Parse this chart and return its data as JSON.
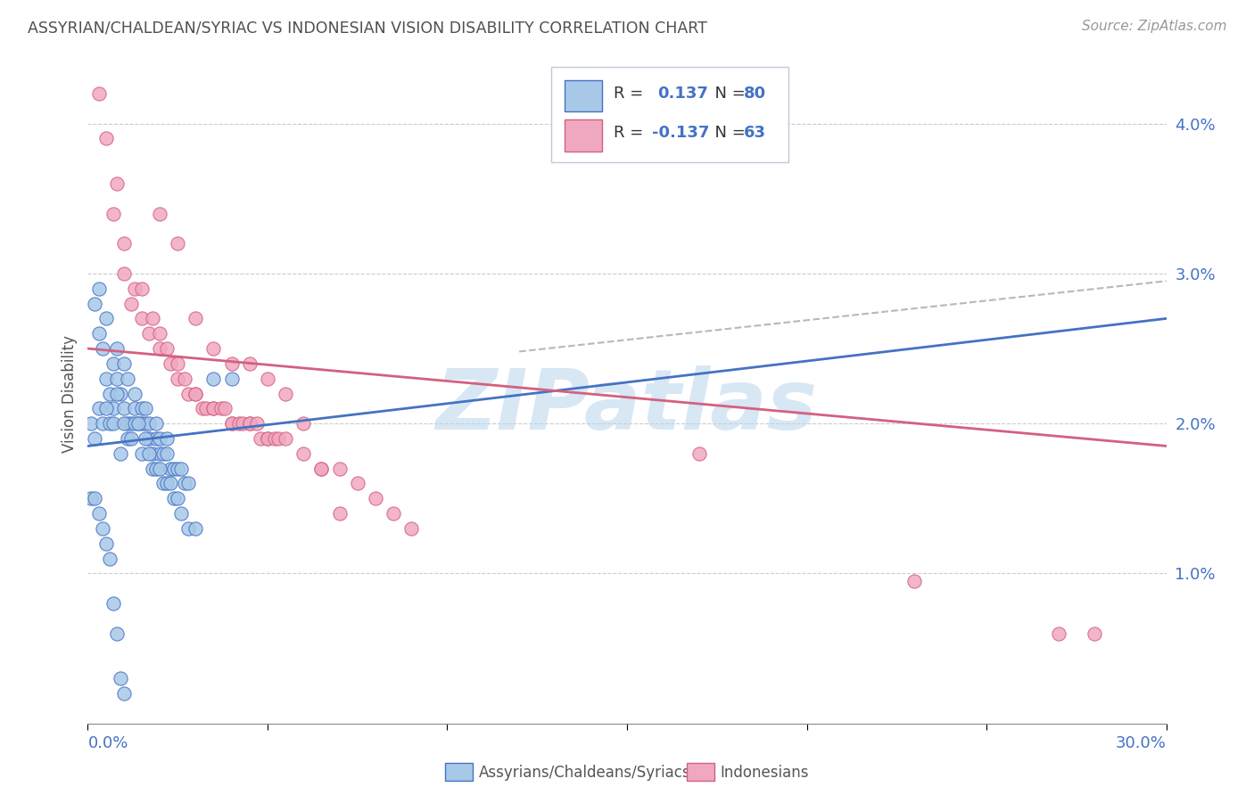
{
  "title": "ASSYRIAN/CHALDEAN/SYRIAC VS INDONESIAN VISION DISABILITY CORRELATION CHART",
  "source": "Source: ZipAtlas.com",
  "ylabel": "Vision Disability",
  "yticks": [
    "1.0%",
    "2.0%",
    "3.0%",
    "4.0%"
  ],
  "ytick_vals": [
    0.01,
    0.02,
    0.03,
    0.04
  ],
  "xmin": 0.0,
  "xmax": 0.3,
  "ymin": 0.0,
  "ymax": 0.044,
  "color_blue": "#a8c8e8",
  "color_pink": "#f0a8c0",
  "line_blue": "#4472c4",
  "line_pink": "#d46080",
  "line_gray": "#b8b8b8",
  "text_blue": "#4472c4",
  "title_color": "#505050",
  "watermark": "ZIPatlas",
  "blue_r": "0.137",
  "blue_n": "80",
  "pink_r": "-0.137",
  "pink_n": "63",
  "blue_line_y0": 0.0185,
  "blue_line_y1": 0.027,
  "pink_line_y0": 0.025,
  "pink_line_y1": 0.0185,
  "gray_line_x0": 0.12,
  "gray_line_y0": 0.0248,
  "gray_line_x1": 0.3,
  "gray_line_y1": 0.0295,
  "blue_scatter_x": [
    0.002,
    0.003,
    0.003,
    0.004,
    0.005,
    0.005,
    0.006,
    0.007,
    0.007,
    0.008,
    0.008,
    0.009,
    0.01,
    0.01,
    0.011,
    0.011,
    0.012,
    0.013,
    0.013,
    0.014,
    0.015,
    0.015,
    0.016,
    0.016,
    0.017,
    0.017,
    0.018,
    0.019,
    0.019,
    0.02,
    0.02,
    0.021,
    0.022,
    0.022,
    0.023,
    0.024,
    0.025,
    0.026,
    0.027,
    0.028,
    0.001,
    0.002,
    0.003,
    0.004,
    0.005,
    0.006,
    0.007,
    0.008,
    0.009,
    0.01,
    0.011,
    0.012,
    0.013,
    0.014,
    0.015,
    0.016,
    0.017,
    0.018,
    0.019,
    0.02,
    0.021,
    0.022,
    0.023,
    0.024,
    0.025,
    0.026,
    0.028,
    0.03,
    0.035,
    0.04,
    0.001,
    0.002,
    0.003,
    0.004,
    0.005,
    0.006,
    0.007,
    0.008,
    0.009,
    0.01
  ],
  "blue_scatter_y": [
    0.028,
    0.029,
    0.026,
    0.025,
    0.027,
    0.023,
    0.022,
    0.024,
    0.021,
    0.025,
    0.023,
    0.022,
    0.024,
    0.021,
    0.023,
    0.02,
    0.02,
    0.022,
    0.021,
    0.02,
    0.021,
    0.02,
    0.02,
    0.021,
    0.02,
    0.019,
    0.018,
    0.019,
    0.02,
    0.019,
    0.018,
    0.018,
    0.019,
    0.018,
    0.017,
    0.017,
    0.017,
    0.017,
    0.016,
    0.016,
    0.02,
    0.019,
    0.021,
    0.02,
    0.021,
    0.02,
    0.02,
    0.022,
    0.018,
    0.02,
    0.019,
    0.019,
    0.02,
    0.02,
    0.018,
    0.019,
    0.018,
    0.017,
    0.017,
    0.017,
    0.016,
    0.016,
    0.016,
    0.015,
    0.015,
    0.014,
    0.013,
    0.013,
    0.023,
    0.023,
    0.015,
    0.015,
    0.014,
    0.013,
    0.012,
    0.011,
    0.008,
    0.006,
    0.003,
    0.002
  ],
  "pink_scatter_x": [
    0.003,
    0.005,
    0.007,
    0.008,
    0.01,
    0.01,
    0.012,
    0.013,
    0.015,
    0.015,
    0.017,
    0.018,
    0.02,
    0.02,
    0.022,
    0.023,
    0.025,
    0.025,
    0.027,
    0.028,
    0.03,
    0.03,
    0.032,
    0.033,
    0.035,
    0.035,
    0.037,
    0.038,
    0.04,
    0.04,
    0.042,
    0.043,
    0.045,
    0.045,
    0.047,
    0.048,
    0.05,
    0.05,
    0.052,
    0.053,
    0.055,
    0.06,
    0.065,
    0.07,
    0.075,
    0.08,
    0.085,
    0.09,
    0.17,
    0.23,
    0.27,
    0.28,
    0.02,
    0.025,
    0.03,
    0.035,
    0.04,
    0.045,
    0.05,
    0.055,
    0.06,
    0.065,
    0.07
  ],
  "pink_scatter_y": [
    0.042,
    0.039,
    0.034,
    0.036,
    0.03,
    0.032,
    0.028,
    0.029,
    0.027,
    0.029,
    0.026,
    0.027,
    0.025,
    0.026,
    0.025,
    0.024,
    0.024,
    0.023,
    0.023,
    0.022,
    0.022,
    0.022,
    0.021,
    0.021,
    0.021,
    0.021,
    0.021,
    0.021,
    0.02,
    0.02,
    0.02,
    0.02,
    0.02,
    0.02,
    0.02,
    0.019,
    0.019,
    0.019,
    0.019,
    0.019,
    0.019,
    0.018,
    0.017,
    0.017,
    0.016,
    0.015,
    0.014,
    0.013,
    0.018,
    0.0095,
    0.006,
    0.006,
    0.034,
    0.032,
    0.027,
    0.025,
    0.024,
    0.024,
    0.023,
    0.022,
    0.02,
    0.017,
    0.014
  ]
}
